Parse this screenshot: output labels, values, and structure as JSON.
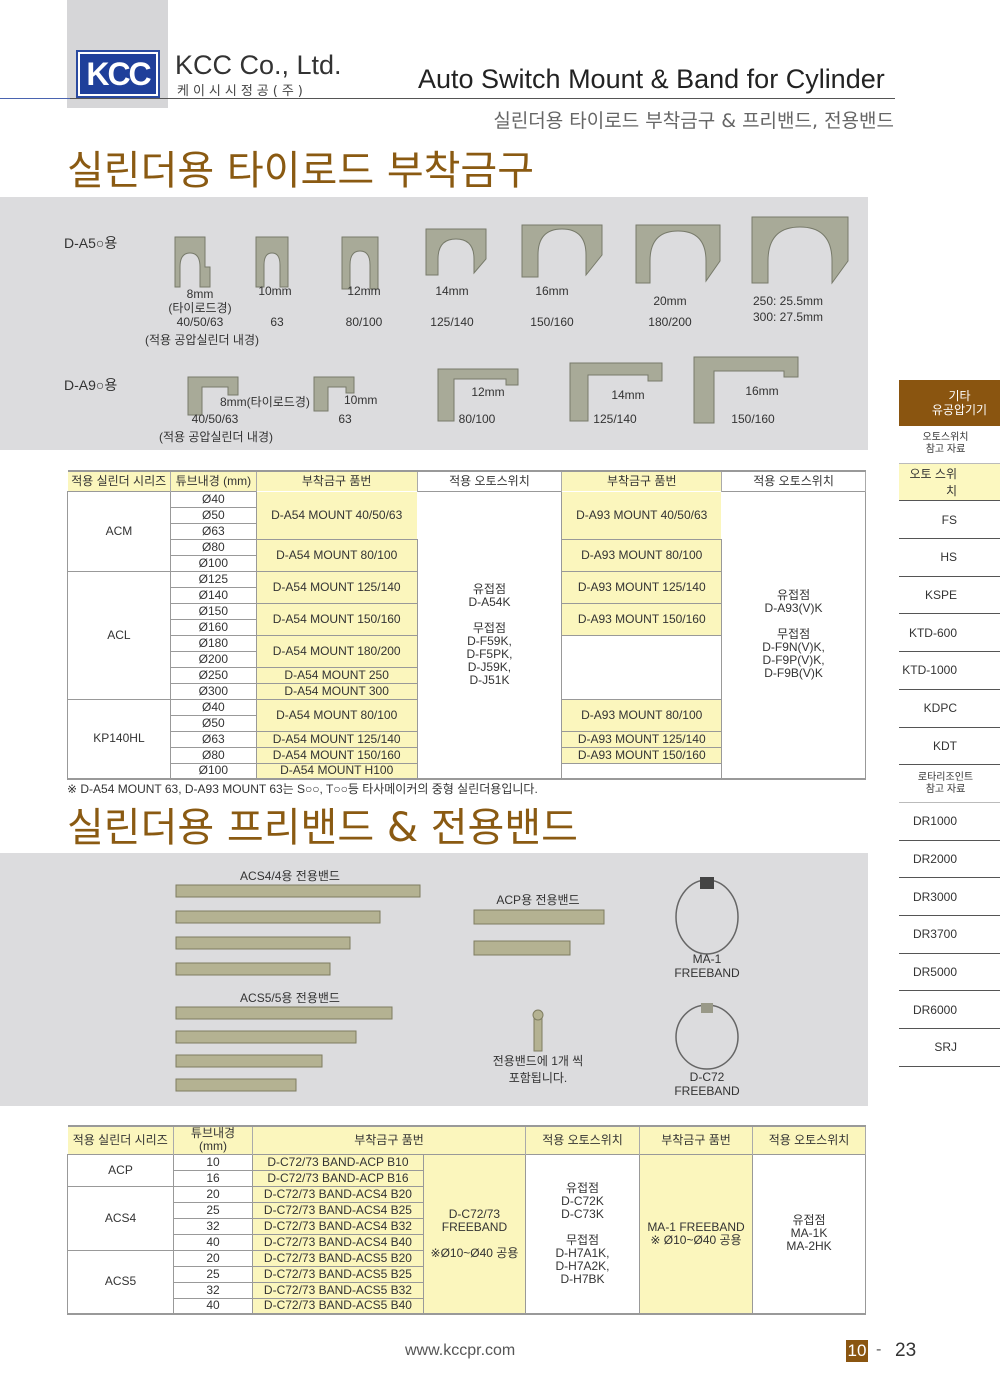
{
  "header": {
    "company": "KCC Co., Ltd.",
    "company_kr": "케이시시정공(주)",
    "logo_text": "KCC",
    "title": "Auto Switch Mount & Band for Cylinder",
    "subtitle": "실린더용 타이로드 부착금구 & 프리밴드, 전용밴드"
  },
  "section1": {
    "title": "실린더용 타이로드 부착금구",
    "a5": {
      "label": "D-A5○용",
      "items": [
        {
          "size": "8mm",
          "extra": "(타이로드경)",
          "bore": "40/50/63",
          "note": "(적용 공압실린더 내경)"
        },
        {
          "size": "10mm",
          "bore": "63"
        },
        {
          "size": "12mm",
          "bore": "80/100"
        },
        {
          "size": "14mm",
          "bore": "125/140"
        },
        {
          "size": "16mm",
          "bore": "150/160"
        },
        {
          "size": "20mm",
          "bore": "180/200"
        },
        {
          "size": "250: 25.5mm",
          "size2": "300: 27.5mm"
        }
      ]
    },
    "a9": {
      "label": "D-A9○용",
      "items": [
        {
          "size": "8mm(타이로드경)",
          "bore": "40/50/63",
          "note": "(적용 공압실린더 내경)"
        },
        {
          "size": "10mm",
          "bore": "63"
        },
        {
          "size": "12mm",
          "bore": "80/100"
        },
        {
          "size": "14mm",
          "bore": "125/140"
        },
        {
          "size": "16mm",
          "bore": "150/160"
        }
      ]
    }
  },
  "table1": {
    "headers": [
      "적용 실린더 시리즈",
      "튜브내경 (mm)",
      "부착금구 품번",
      "적용 오토스위치",
      "부착금구 품번",
      "적용 오토스위치"
    ],
    "series": [
      {
        "name": "ACM",
        "rows": 5
      },
      {
        "name": "ACL",
        "rows": 8
      },
      {
        "name": "KP140HL",
        "rows": 5
      }
    ],
    "bores": [
      "Ø40",
      "Ø50",
      "Ø63",
      "Ø80",
      "Ø100",
      "Ø125",
      "Ø140",
      "Ø150",
      "Ø160",
      "Ø180",
      "Ø200",
      "Ø250",
      "Ø300",
      "Ø40",
      "Ø50",
      "Ø63",
      "Ø80",
      "Ø100"
    ],
    "a54": [
      {
        "text": "D-A54 MOUNT 40/50/63",
        "rows": 3
      },
      {
        "text": "D-A54 MOUNT 80/100",
        "rows": 2
      },
      {
        "text": "D-A54 MOUNT 125/140",
        "rows": 2
      },
      {
        "text": "D-A54 MOUNT 150/160",
        "rows": 2
      },
      {
        "text": "D-A54 MOUNT 180/200",
        "rows": 2
      },
      {
        "text": "D-A54 MOUNT 250",
        "rows": 1
      },
      {
        "text": "D-A54 MOUNT 300",
        "rows": 1
      },
      {
        "text": "D-A54 MOUNT 80/100",
        "rows": 2
      },
      {
        "text": "D-A54 MOUNT 125/140",
        "rows": 1
      },
      {
        "text": "D-A54 MOUNT 150/160",
        "rows": 1
      },
      {
        "text": "D-A54 MOUNT H100",
        "rows": 1
      }
    ],
    "a54_switch": "유접점\nD-A54K\n\n무접점\nD-F59K,\nD-F5PK,\nD-J59K,\nD-J51K",
    "a93": [
      {
        "text": "D-A93 MOUNT 40/50/63",
        "rows": 3
      },
      {
        "text": "D-A93 MOUNT 80/100",
        "rows": 2
      },
      {
        "text": "D-A93 MOUNT 125/140",
        "rows": 2
      },
      {
        "text": "D-A93 MOUNT 150/160",
        "rows": 2
      },
      {
        "text": "",
        "rows": 4
      },
      {
        "text": "D-A93 MOUNT 80/100",
        "rows": 2
      },
      {
        "text": "D-A93 MOUNT 125/140",
        "rows": 1
      },
      {
        "text": "D-A93 MOUNT 150/160",
        "rows": 1
      },
      {
        "text": "",
        "rows": 1
      }
    ],
    "a93_switch": "유접점\nD-A93(V)K\n\n무접점\nD-F9N(V)K,\nD-F9P(V)K,\nD-F9B(V)K",
    "note": "※ D-A54 MOUNT 63, D-A93 MOUNT 63는 S○○, T○○등 타사메이커의 중형 실린더용입니다."
  },
  "section2": {
    "title": "실린더용 프리밴드 & 전용밴드",
    "acs4_label": "ACS4/4용 전용밴드",
    "acs5_label": "ACS5/5용 전용밴드",
    "acp_label": "ACP용 전용밴드",
    "screw_note": "전용밴드에 1개 씩\n포함됩니다.",
    "ma1": "MA-1\nFREEBAND",
    "dc72": "D-C72\nFREEBAND"
  },
  "table2": {
    "headers": [
      "적용 실린더 시리즈",
      "튜브내경\n(mm)",
      "부착금구 품번",
      "적용 오토스위치",
      "부착금구 품번",
      "적용 오토스위치"
    ],
    "series": [
      {
        "name": "ACP",
        "rows": 2
      },
      {
        "name": "ACS4",
        "rows": 4
      },
      {
        "name": "ACS5",
        "rows": 4
      }
    ],
    "bores": [
      "10",
      "16",
      "20",
      "25",
      "32",
      "40",
      "20",
      "25",
      "32",
      "40"
    ],
    "parts": [
      "D-C72/73 BAND-ACP B10",
      "D-C72/73 BAND-ACP B16",
      "D-C72/73 BAND-ACS4 B20",
      "D-C72/73 BAND-ACS4 B25",
      "D-C72/73 BAND-ACS4 B32",
      "D-C72/73 BAND-ACS4 B40",
      "D-C72/73 BAND-ACS5 B20",
      "D-C72/73 BAND-ACS5 B25",
      "D-C72/73 BAND-ACS5 B32",
      "D-C72/73 BAND-ACS5 B40"
    ],
    "freeband": "D-C72/73\nFREEBAND\n\n※Ø10~Ø40 공용",
    "switch1": "유접점\nD-C72K\nD-C73K\n\n무접점\nD-H7A1K,\nD-H7A2K,\nD-H7BK",
    "ma1": "MA-1 FREEBAND\n※ Ø10~Ø40 공용",
    "switch2": "유접점\nMA-1K\nMA-2HK"
  },
  "sidebar": {
    "items": [
      {
        "label": "기타\n유공압기기",
        "type": "head"
      },
      {
        "label": "오토스위치\n참고 자료",
        "type": "sm"
      },
      {
        "label": "오토 스위치",
        "type": "act"
      },
      {
        "label": "FS"
      },
      {
        "label": "HS"
      },
      {
        "label": "KSPE"
      },
      {
        "label": "KTD-600"
      },
      {
        "label": "KTD-1000"
      },
      {
        "label": "KDPC"
      },
      {
        "label": "KDT"
      },
      {
        "label": "로타리조인트\n참고 자료",
        "type": "sm"
      },
      {
        "label": "DR1000"
      },
      {
        "label": "DR2000"
      },
      {
        "label": "DR3000"
      },
      {
        "label": "DR3700"
      },
      {
        "label": "DR5000"
      },
      {
        "label": "DR6000"
      },
      {
        "label": "SRJ"
      }
    ]
  },
  "footer": {
    "url": "www.kccpr.com",
    "chapter": "10",
    "dash": "-",
    "page": "23"
  },
  "colors": {
    "accent_brown": "#8a5510",
    "highlight_yellow": "#fbf6bd",
    "logo_blue": "#1f3f9a",
    "panel_gray": "#dcdcde"
  }
}
